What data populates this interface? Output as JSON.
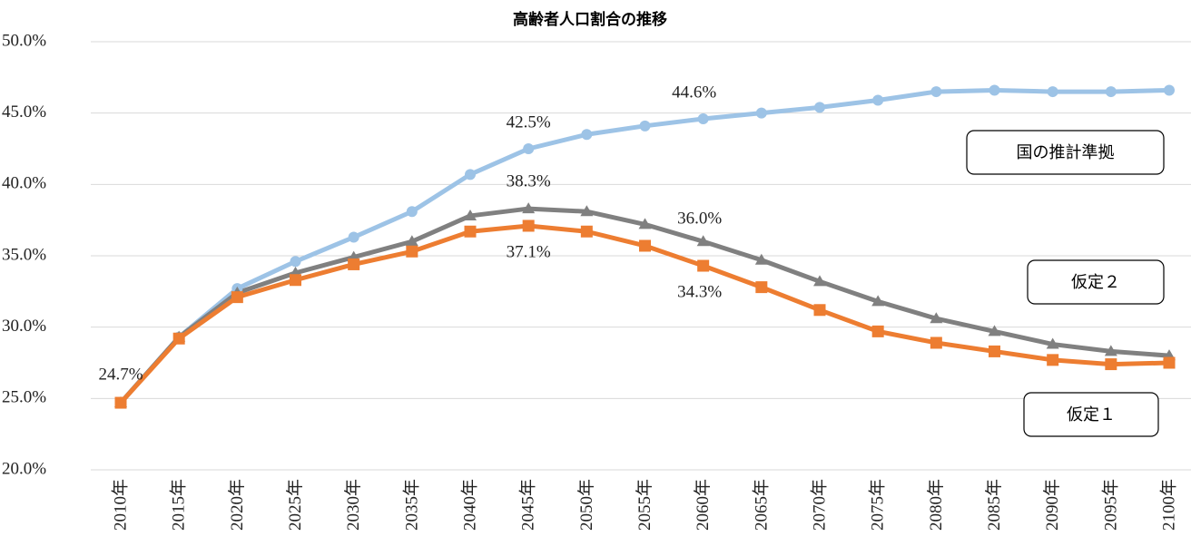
{
  "chart_data": {
    "type": "line",
    "title": "高齢者人口割合の推移",
    "categories": [
      "2010年",
      "2015年",
      "2020年",
      "2025年",
      "2030年",
      "2035年",
      "2040年",
      "2045年",
      "2050年",
      "2055年",
      "2060年",
      "2065年",
      "2070年",
      "2075年",
      "2080年",
      "2085年",
      "2090年",
      "2095年",
      "2100年"
    ],
    "series": [
      {
        "name": "国の推計準拠",
        "color": "#9dc3e6",
        "marker": "circle",
        "values": [
          24.7,
          29.3,
          32.7,
          34.6,
          36.3,
          38.1,
          40.7,
          42.5,
          43.5,
          44.1,
          44.6,
          45.0,
          45.4,
          45.9,
          46.5,
          46.6,
          46.5,
          46.5,
          46.6
        ],
        "value_labels": [
          null,
          null,
          null,
          null,
          null,
          null,
          null,
          "42.5%",
          null,
          null,
          "44.6%",
          null,
          null,
          null,
          null,
          null,
          null,
          null,
          null
        ]
      },
      {
        "name": "仮定２",
        "color": "#808080",
        "marker": "triangle",
        "values": [
          24.7,
          29.3,
          32.4,
          33.8,
          34.9,
          36.0,
          37.8,
          38.3,
          38.1,
          37.2,
          36.0,
          34.7,
          33.2,
          31.8,
          30.6,
          29.7,
          28.8,
          28.3,
          28.0
        ],
        "value_labels": [
          null,
          null,
          null,
          null,
          null,
          null,
          null,
          "38.3%",
          null,
          null,
          "36.0%",
          null,
          null,
          null,
          null,
          null,
          null,
          null,
          null
        ]
      },
      {
        "name": "仮定１",
        "color": "#ed7d31",
        "marker": "square",
        "values": [
          24.7,
          29.2,
          32.1,
          33.3,
          34.4,
          35.3,
          36.7,
          37.1,
          36.7,
          35.7,
          34.3,
          32.8,
          31.2,
          29.7,
          28.9,
          28.3,
          27.7,
          27.4,
          27.5
        ],
        "value_labels": [
          "24.7%",
          null,
          null,
          null,
          null,
          null,
          null,
          "37.1%",
          null,
          null,
          "34.3%",
          null,
          null,
          null,
          null,
          null,
          null,
          null,
          null
        ]
      }
    ],
    "ylim": [
      20,
      50
    ],
    "yticks": [
      {
        "value": 20,
        "label": "20.0%"
      },
      {
        "value": 25,
        "label": "25.0%"
      },
      {
        "value": 30,
        "label": "30.0%"
      },
      {
        "value": 35,
        "label": "35.0%"
      },
      {
        "value": 40,
        "label": "40.0%"
      },
      {
        "value": 45,
        "label": "45.0%"
      },
      {
        "value": 50,
        "label": "50.0%"
      }
    ],
    "grid": true
  }
}
